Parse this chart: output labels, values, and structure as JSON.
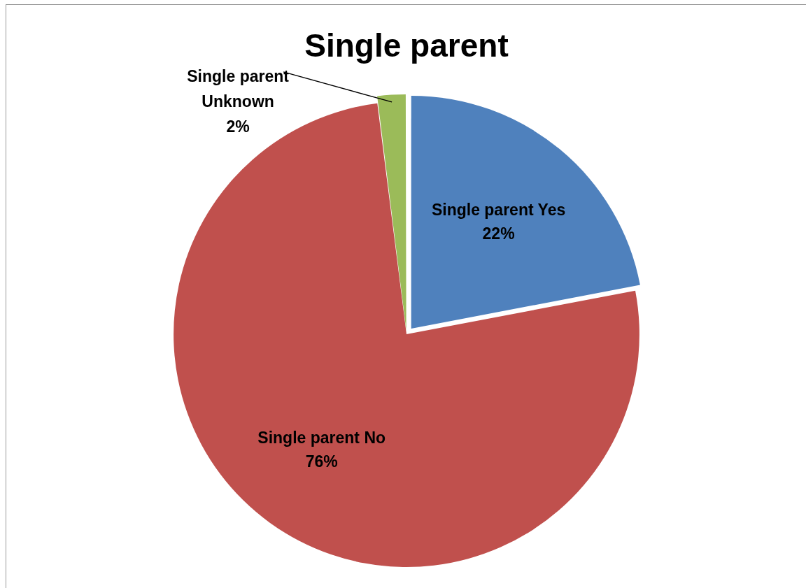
{
  "chart_data": {
    "type": "pie",
    "title": "Single parent",
    "categories": [
      "Single parent Yes",
      "Single parent No",
      "Single parent Unknown"
    ],
    "values": [
      22,
      76,
      2
    ],
    "colors": [
      "#4f81bd",
      "#c0504d",
      "#9bbb59"
    ],
    "value_labels": [
      "22%",
      "76%",
      "2%"
    ]
  }
}
